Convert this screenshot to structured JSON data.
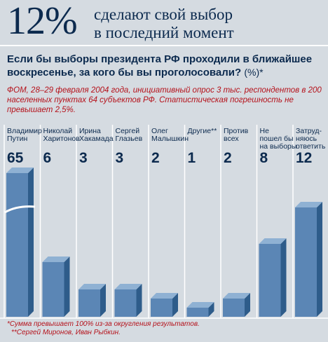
{
  "header": {
    "big_value": "12%",
    "text_line1": "сделают свой выбор",
    "text_line2": "в последний момент"
  },
  "question": {
    "text": "Если бы выборы президента РФ проходили в ближайшее воскресенье, за кого бы вы проголосовали?",
    "unit": "(%)*"
  },
  "source": "ФОМ, 28–29 февраля 2004 года, инициативный опрос 3 тыс. респондентов в 200 населенных пунктах 64 субъектов РФ. Статистическая погрешность не превышает 2,5%.",
  "footnotes": [
    "*Сумма превышает 100% из-за округления результатов.",
    "**Сергей Миронов, Иван Рыбкин."
  ],
  "colors": {
    "bar_front": "#5b86b5",
    "bar_side": "#2e5c8a",
    "bar_top": "#8fb1d3",
    "label": "#0c2a4e",
    "accent": "#b5121b"
  },
  "chart_data": {
    "type": "bar",
    "categories": [
      [
        "Владимир",
        "Путин"
      ],
      [
        "Николай",
        "Харитонов"
      ],
      [
        "Ирина",
        "Хакамада"
      ],
      [
        "Сергей",
        "Глазьев"
      ],
      [
        "Олег",
        "Малышкин"
      ],
      [
        "Другие**"
      ],
      [
        "Против",
        "всех"
      ],
      [
        "Не",
        "пошел бы",
        "на выборы"
      ],
      [
        "Затруд-",
        "няюсь",
        "ответить"
      ]
    ],
    "values": [
      65,
      6,
      3,
      3,
      2,
      1,
      2,
      8,
      12
    ],
    "value_labels": [
      "65",
      "6",
      "3",
      "3",
      "2",
      "1",
      "2",
      "8",
      "12"
    ],
    "axis_break_on": "Владимир Путин",
    "grid": false,
    "legend": "none"
  }
}
